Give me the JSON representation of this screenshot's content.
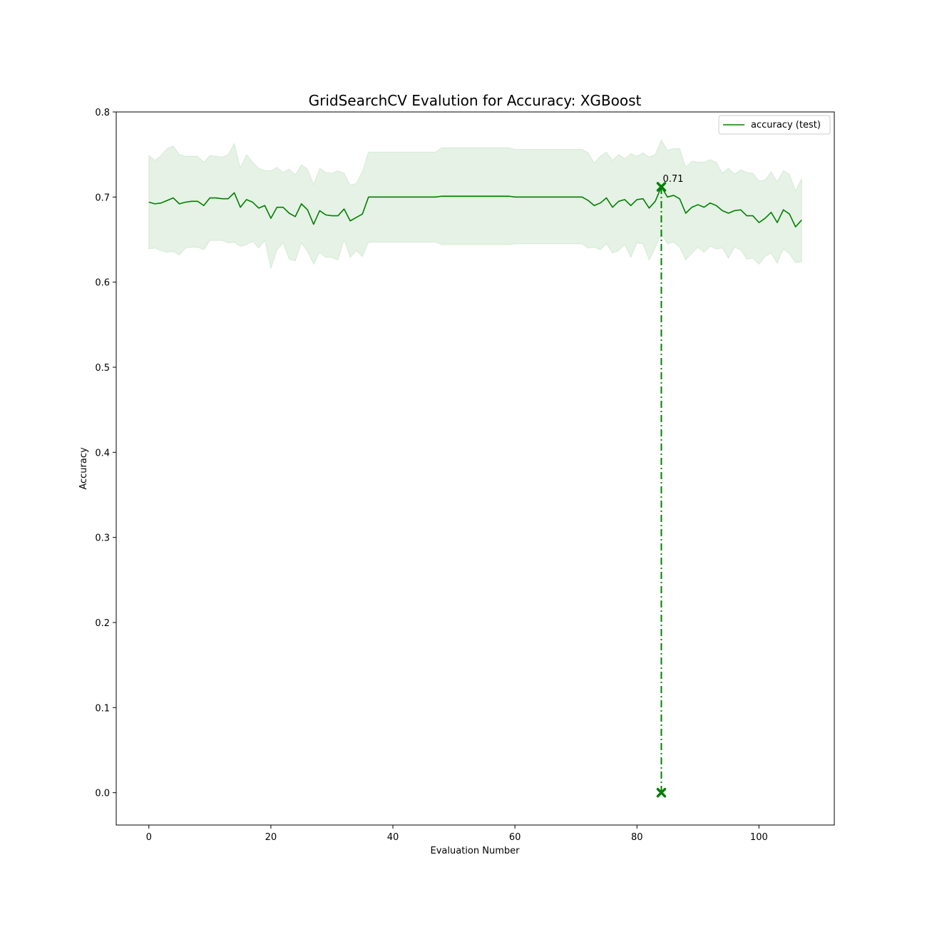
{
  "chart_data": {
    "type": "line",
    "title": "GridSearchCV Evalution for Accuracy: XGBoost",
    "xlabel": "Evaluation Number",
    "ylabel": "Accuracy",
    "xlim": [
      -5.35,
      112.35
    ],
    "ylim": [
      -0.038,
      0.8
    ],
    "xticks": [
      0,
      20,
      40,
      60,
      80,
      100
    ],
    "xtick_labels": [
      "0",
      "20",
      "40",
      "60",
      "80",
      "100"
    ],
    "yticks": [
      0.0,
      0.1,
      0.2,
      0.3,
      0.4,
      0.5,
      0.6,
      0.7,
      0.8
    ],
    "ytick_labels": [
      "0.0",
      "0.1",
      "0.2",
      "0.3",
      "0.4",
      "0.5",
      "0.6",
      "0.7",
      "0.8"
    ],
    "grid": false,
    "legend_position": "top-right",
    "colors": {
      "line": "#008000",
      "band": "#008000"
    },
    "series": [
      {
        "name": "accuracy (test)",
        "x_start": 0,
        "x_step": 1,
        "mean": [
          0.694,
          0.692,
          0.693,
          0.696,
          0.699,
          0.692,
          0.694,
          0.695,
          0.695,
          0.69,
          0.699,
          0.699,
          0.698,
          0.698,
          0.705,
          0.688,
          0.697,
          0.694,
          0.687,
          0.69,
          0.675,
          0.688,
          0.688,
          0.681,
          0.677,
          0.692,
          0.685,
          0.668,
          0.684,
          0.679,
          0.678,
          0.678,
          0.686,
          0.672,
          0.676,
          0.68,
          0.7,
          0.7,
          0.7,
          0.7,
          0.7,
          0.7,
          0.7,
          0.7,
          0.7,
          0.7,
          0.7,
          0.7,
          0.701,
          0.701,
          0.701,
          0.701,
          0.701,
          0.701,
          0.701,
          0.701,
          0.701,
          0.701,
          0.701,
          0.701,
          0.7,
          0.7,
          0.7,
          0.7,
          0.7,
          0.7,
          0.7,
          0.7,
          0.7,
          0.7,
          0.7,
          0.7,
          0.696,
          0.69,
          0.693,
          0.699,
          0.688,
          0.695,
          0.697,
          0.69,
          0.697,
          0.698,
          0.687,
          0.695,
          0.712,
          0.7,
          0.702,
          0.698,
          0.681,
          0.688,
          0.691,
          0.688,
          0.693,
          0.69,
          0.684,
          0.681,
          0.684,
          0.685,
          0.678,
          0.678,
          0.67,
          0.675,
          0.682,
          0.67,
          0.685,
          0.68,
          0.665,
          0.673
        ],
        "upper": [
          0.749,
          0.743,
          0.749,
          0.757,
          0.76,
          0.75,
          0.748,
          0.748,
          0.748,
          0.741,
          0.749,
          0.748,
          0.747,
          0.75,
          0.763,
          0.734,
          0.75,
          0.741,
          0.734,
          0.731,
          0.731,
          0.735,
          0.729,
          0.733,
          0.726,
          0.738,
          0.733,
          0.715,
          0.734,
          0.729,
          0.728,
          0.731,
          0.728,
          0.714,
          0.716,
          0.73,
          0.753,
          0.753,
          0.753,
          0.753,
          0.753,
          0.753,
          0.753,
          0.753,
          0.753,
          0.753,
          0.753,
          0.753,
          0.758,
          0.758,
          0.758,
          0.758,
          0.758,
          0.758,
          0.758,
          0.758,
          0.758,
          0.758,
          0.758,
          0.758,
          0.756,
          0.756,
          0.756,
          0.756,
          0.756,
          0.756,
          0.756,
          0.756,
          0.756,
          0.756,
          0.756,
          0.756,
          0.752,
          0.74,
          0.748,
          0.753,
          0.743,
          0.75,
          0.745,
          0.751,
          0.748,
          0.752,
          0.747,
          0.75,
          0.767,
          0.755,
          0.757,
          0.757,
          0.735,
          0.742,
          0.741,
          0.741,
          0.744,
          0.741,
          0.728,
          0.734,
          0.727,
          0.732,
          0.729,
          0.728,
          0.719,
          0.72,
          0.73,
          0.718,
          0.731,
          0.727,
          0.707,
          0.722
        ],
        "lower": [
          0.639,
          0.64,
          0.637,
          0.635,
          0.636,
          0.632,
          0.64,
          0.641,
          0.641,
          0.638,
          0.649,
          0.649,
          0.649,
          0.646,
          0.647,
          0.642,
          0.644,
          0.648,
          0.64,
          0.649,
          0.616,
          0.638,
          0.646,
          0.627,
          0.625,
          0.646,
          0.636,
          0.621,
          0.635,
          0.629,
          0.629,
          0.626,
          0.65,
          0.629,
          0.637,
          0.63,
          0.647,
          0.647,
          0.647,
          0.647,
          0.647,
          0.647,
          0.647,
          0.647,
          0.647,
          0.647,
          0.647,
          0.647,
          0.644,
          0.644,
          0.644,
          0.644,
          0.644,
          0.644,
          0.644,
          0.644,
          0.644,
          0.644,
          0.644,
          0.644,
          0.645,
          0.645,
          0.645,
          0.645,
          0.645,
          0.645,
          0.645,
          0.645,
          0.645,
          0.645,
          0.645,
          0.645,
          0.64,
          0.641,
          0.638,
          0.645,
          0.634,
          0.637,
          0.644,
          0.629,
          0.646,
          0.645,
          0.626,
          0.64,
          0.657,
          0.645,
          0.647,
          0.641,
          0.626,
          0.634,
          0.641,
          0.635,
          0.642,
          0.639,
          0.64,
          0.628,
          0.641,
          0.638,
          0.627,
          0.628,
          0.621,
          0.63,
          0.634,
          0.622,
          0.639,
          0.633,
          0.623,
          0.624
        ]
      }
    ],
    "best_point": {
      "x": 84,
      "y": 0.712,
      "label": "0.71"
    }
  }
}
